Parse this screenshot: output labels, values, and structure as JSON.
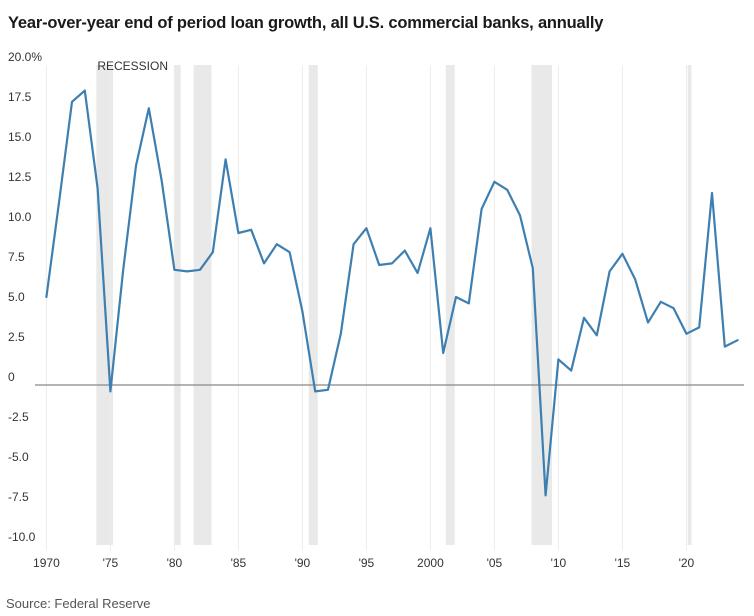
{
  "title": "Year-over-year end of period loan growth, all U.S. commercial banks, annually",
  "source": "Source: Federal Reserve",
  "recession_label": "RECESSION",
  "colors": {
    "line": "#3e7fb1",
    "grid": "#ececec",
    "zero": "#888888",
    "recession": "#e9e9e9"
  },
  "chart_data": {
    "type": "line",
    "title": "Year-over-year end of period loan growth, all U.S. commercial banks, annually",
    "xlabel": "",
    "ylabel": "",
    "xlim": [
      1969.5,
      2024.5
    ],
    "ylim": [
      -10,
      20
    ],
    "y_ticks": [
      {
        "value": 20,
        "label": "20.0%"
      },
      {
        "value": 17.5,
        "label": "17.5"
      },
      {
        "value": 15,
        "label": "15.0"
      },
      {
        "value": 12.5,
        "label": "12.5"
      },
      {
        "value": 10,
        "label": "10.0"
      },
      {
        "value": 7.5,
        "label": "7.5"
      },
      {
        "value": 5,
        "label": "5.0"
      },
      {
        "value": 2.5,
        "label": "2.5"
      },
      {
        "value": 0,
        "label": "0"
      },
      {
        "value": -2.5,
        "label": "-2.5"
      },
      {
        "value": -5,
        "label": "-5.0"
      },
      {
        "value": -7.5,
        "label": "-7.5"
      },
      {
        "value": -10,
        "label": "-10.0"
      }
    ],
    "x_ticks": [
      {
        "value": 1970,
        "label": "1970"
      },
      {
        "value": 1975,
        "label": "'75"
      },
      {
        "value": 1980,
        "label": "'80"
      },
      {
        "value": 1985,
        "label": "'85"
      },
      {
        "value": 1990,
        "label": "'90"
      },
      {
        "value": 1995,
        "label": "'95"
      },
      {
        "value": 2000,
        "label": "2000"
      },
      {
        "value": 2005,
        "label": "'05"
      },
      {
        "value": 2010,
        "label": "'10"
      },
      {
        "value": 2015,
        "label": "'15"
      },
      {
        "value": 2020,
        "label": "'20"
      }
    ],
    "recessions": [
      [
        1973.9,
        1975.2
      ],
      [
        1980.0,
        1980.5
      ],
      [
        1981.5,
        1982.9
      ],
      [
        1990.5,
        1991.2
      ],
      [
        2001.2,
        2001.9
      ],
      [
        2007.9,
        2009.5
      ],
      [
        2020.1,
        2020.4
      ]
    ],
    "series": [
      {
        "x": [
          1970,
          1971,
          1972,
          1973,
          1974,
          1975,
          1976,
          1977,
          1978,
          1979,
          1980,
          1981,
          1982,
          1983,
          1984,
          1985,
          1986,
          1987,
          1988,
          1989,
          1990,
          1991,
          1992,
          1993,
          1994,
          1995,
          1996,
          1997,
          1998,
          1999,
          2000,
          2001,
          2002,
          2003,
          2004,
          2005,
          2006,
          2007,
          2008,
          2009,
          2010,
          2011,
          2012,
          2013,
          2014,
          2015,
          2016,
          2017,
          2018,
          2019,
          2020,
          2021,
          2022,
          2023,
          2024
        ],
        "values": [
          5.5,
          11.5,
          17.7,
          18.4,
          12.3,
          -0.4,
          7.2,
          13.7,
          17.3,
          12.8,
          7.2,
          7.1,
          7.2,
          8.3,
          14.1,
          9.5,
          9.7,
          7.6,
          8.8,
          8.3,
          4.6,
          -0.4,
          -0.3,
          3.2,
          8.8,
          9.8,
          7.5,
          7.6,
          8.4,
          7.0,
          9.8,
          2.0,
          5.5,
          5.1,
          11.0,
          12.7,
          12.2,
          10.6,
          7.3,
          -6.9,
          1.6,
          0.9,
          4.2,
          3.1,
          7.1,
          8.2,
          6.6,
          3.9,
          5.2,
          4.8,
          3.2,
          3.6,
          12.0,
          2.4,
          2.8
        ]
      }
    ],
    "grid": "vertical",
    "legend": "none"
  }
}
